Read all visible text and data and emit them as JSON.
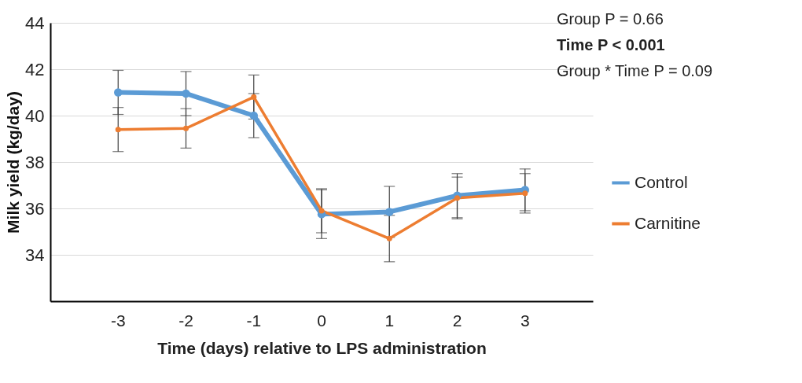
{
  "chart_data": {
    "type": "line",
    "xlabel": "Time (days) relative to LPS administration",
    "ylabel": "Milk yield (kg/day)",
    "categories": [
      "-3",
      "-2",
      "-1",
      "0",
      "1",
      "2",
      "3"
    ],
    "series": [
      {
        "name": "Control",
        "color": "#5b9bd5",
        "values": [
          41.0,
          40.95,
          40.0,
          35.75,
          35.85,
          36.55,
          36.8
        ],
        "errors": [
          0.95,
          0.95,
          0.95,
          1.05,
          1.1,
          0.95,
          0.9
        ]
      },
      {
        "name": "Carnitine",
        "color": "#ed7d31",
        "values": [
          39.4,
          39.45,
          40.8,
          35.9,
          34.7,
          36.45,
          36.65
        ],
        "errors": [
          0.95,
          0.85,
          0.95,
          0.95,
          1.0,
          0.9,
          0.85
        ]
      }
    ],
    "ylim": [
      32,
      44
    ],
    "yticks": [
      34,
      36,
      38,
      40,
      42,
      44
    ],
    "grid": "y",
    "legend": "right",
    "marker": "circle",
    "annotations": [
      "Group P = 0.66",
      "Time P < 0.001",
      "Group * Time P = 0.09"
    ]
  }
}
